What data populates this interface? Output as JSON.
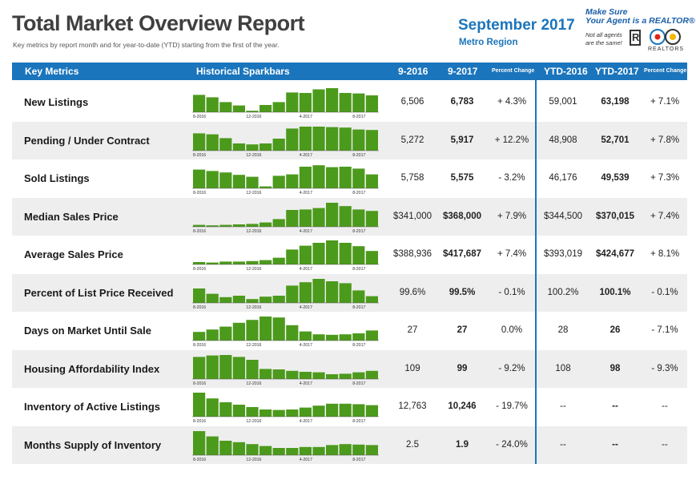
{
  "header": {
    "title": "Total Market Overview Report",
    "subtitle": "Key metrics by report month and for year-to-date (YTD) starting from the first of the year.",
    "month": "September 2017",
    "region": "Metro Region",
    "agent_line1": "Make Sure",
    "agent_line2": "Your Agent is a REALTOR®",
    "agent_line3": "Not all agents",
    "agent_line4": "are the same!",
    "realtors_label": "REALTORS"
  },
  "columns": {
    "key_metrics": "Key Metrics",
    "sparkbars": "Historical Sparkbars",
    "m2016": "9-2016",
    "m2017": "9-2017",
    "pct": "Percent Change",
    "ytd2016": "YTD-2016",
    "ytd2017": "YTD-2017",
    "ytd_pct": "Percent Change"
  },
  "spark_ticks": [
    "8-2016",
    "12-2016",
    "4-2017",
    "8-2017"
  ],
  "colors": {
    "accent": "#1b75bc",
    "bar": "#4c9a1c",
    "row_shade": "#eeeeee"
  },
  "rows": [
    {
      "metric": "New Listings",
      "v2016": "6,506",
      "v2017": "6,783",
      "pct": "+ 4.3%",
      "ytd2016": "59,001",
      "ytd2017": "63,198",
      "ytd_pct": "+ 7.1%",
      "bars": [
        0.72,
        0.62,
        0.42,
        0.28,
        0.06,
        0.3,
        0.42,
        0.82,
        0.8,
        0.95,
        1.0,
        0.8,
        0.78,
        0.7
      ]
    },
    {
      "metric": "Pending / Under Contract",
      "v2016": "5,272",
      "v2017": "5,917",
      "pct": "+ 12.2%",
      "ytd2016": "48,908",
      "ytd2017": "52,701",
      "ytd_pct": "+ 7.8%",
      "bars": [
        0.72,
        0.68,
        0.52,
        0.3,
        0.26,
        0.3,
        0.5,
        0.92,
        1.0,
        1.0,
        0.98,
        0.96,
        0.88,
        0.86
      ]
    },
    {
      "metric": "Sold Listings",
      "v2016": "5,758",
      "v2017": "5,575",
      "pct": "- 3.2%",
      "ytd2016": "46,176",
      "ytd2017": "49,539",
      "ytd_pct": "+ 7.3%",
      "bars": [
        0.78,
        0.72,
        0.66,
        0.56,
        0.48,
        0.08,
        0.52,
        0.58,
        0.9,
        0.96,
        0.88,
        0.9,
        0.82,
        0.58
      ]
    },
    {
      "metric": "Median Sales Price",
      "v2016": "$341,000",
      "v2017": "$368,000",
      "pct": "+ 7.9%",
      "ytd2016": "$344,500",
      "ytd2017": "$370,015",
      "ytd_pct": "+ 7.4%",
      "bars": [
        0.08,
        0.06,
        0.08,
        0.1,
        0.12,
        0.18,
        0.32,
        0.7,
        0.72,
        0.78,
        1.0,
        0.86,
        0.72,
        0.66
      ]
    },
    {
      "metric": "Average Sales Price",
      "v2016": "$388,936",
      "v2017": "$417,687",
      "pct": "+ 7.4%",
      "ytd2016": "$393,019",
      "ytd2017": "$424,677",
      "ytd_pct": "+ 8.1%",
      "bars": [
        0.1,
        0.08,
        0.12,
        0.12,
        0.14,
        0.18,
        0.28,
        0.62,
        0.78,
        0.9,
        1.0,
        0.9,
        0.76,
        0.56
      ]
    },
    {
      "metric": "Percent of List Price Received",
      "v2016": "99.6%",
      "v2017": "99.5%",
      "pct": "- 0.1%",
      "ytd2016": "100.2%",
      "ytd2017": "100.1%",
      "ytd_pct": "- 0.1%",
      "bars": [
        0.6,
        0.38,
        0.24,
        0.3,
        0.16,
        0.26,
        0.3,
        0.72,
        0.86,
        1.0,
        0.9,
        0.82,
        0.52,
        0.28
      ]
    },
    {
      "metric": "Days on Market Until Sale",
      "v2016": "27",
      "v2017": "27",
      "pct": "0.0%",
      "ytd2016": "28",
      "ytd2017": "26",
      "ytd_pct": "- 7.1%",
      "bars": [
        0.36,
        0.46,
        0.58,
        0.74,
        0.86,
        1.0,
        0.96,
        0.64,
        0.38,
        0.26,
        0.24,
        0.26,
        0.3,
        0.42
      ]
    },
    {
      "metric": "Housing Affordability Index",
      "v2016": "109",
      "v2017": "99",
      "pct": "- 9.2%",
      "ytd2016": "108",
      "ytd2017": "98",
      "ytd_pct": "- 9.3%",
      "bars": [
        0.92,
        0.98,
        1.0,
        0.92,
        0.8,
        0.42,
        0.4,
        0.34,
        0.3,
        0.28,
        0.2,
        0.22,
        0.28,
        0.34
      ]
    },
    {
      "metric": "Inventory of Active Listings",
      "v2016": "12,763",
      "v2017": "10,246",
      "pct": "- 19.7%",
      "ytd2016": "--",
      "ytd2017": "--",
      "ytd_pct": "--",
      "bars": [
        1.0,
        0.76,
        0.6,
        0.5,
        0.4,
        0.3,
        0.28,
        0.3,
        0.38,
        0.46,
        0.54,
        0.54,
        0.52,
        0.48
      ]
    },
    {
      "metric": "Months Supply of Inventory",
      "v2016": "2.5",
      "v2017": "1.9",
      "pct": "- 24.0%",
      "ytd2016": "--",
      "ytd2017": "--",
      "ytd_pct": "--",
      "bars": [
        1.0,
        0.78,
        0.6,
        0.54,
        0.46,
        0.38,
        0.3,
        0.3,
        0.34,
        0.34,
        0.42,
        0.46,
        0.44,
        0.42
      ]
    }
  ]
}
